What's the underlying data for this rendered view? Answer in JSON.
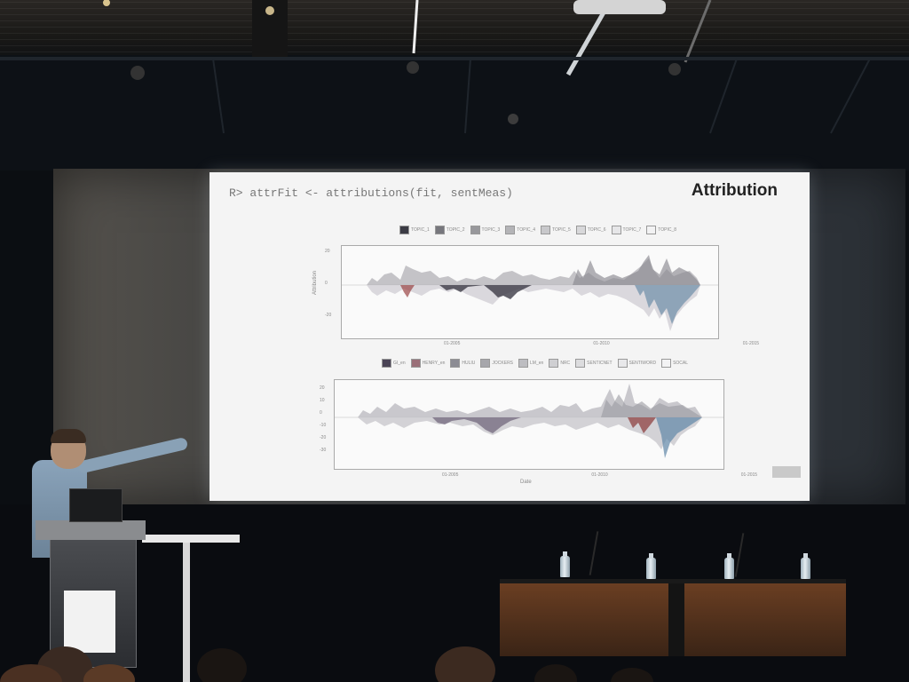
{
  "slide": {
    "code_line": "R> attrFit <- attributions(fit, sentMeas)",
    "title": "Attribution",
    "badge": "",
    "top_legend": [
      "TOPIC_1",
      "TOPIC_2",
      "TOPIC_3",
      "TOPIC_4",
      "TOPIC_5",
      "TOPIC_6",
      "TOPIC_7",
      "TOPIC_8"
    ],
    "bottom_legend": [
      "GI_en",
      "HENRY_en",
      "HULIU",
      "JOCKERS",
      "LM_en",
      "NRC",
      "SENTICNET",
      "SENTIWORD",
      "SOCAL"
    ],
    "top_plot": {
      "ylabel": "Attribution",
      "yticks": [
        "20",
        "0",
        "-20"
      ],
      "xticks": [
        "01-2005",
        "01-2010",
        "01-2015"
      ]
    },
    "bottom_plot": {
      "xlabel": "Date",
      "yticks": [
        "20",
        "10",
        "0",
        "-10",
        "-20",
        "-30"
      ],
      "xticks": [
        "01-2005",
        "01-2010",
        "01-2015"
      ]
    }
  },
  "colors": {
    "slide_background": "#f4f4f4",
    "title": "#222222",
    "code": "#777777",
    "table_wood": "#6a3e22",
    "screen_surround": "#3b3c3c"
  }
}
